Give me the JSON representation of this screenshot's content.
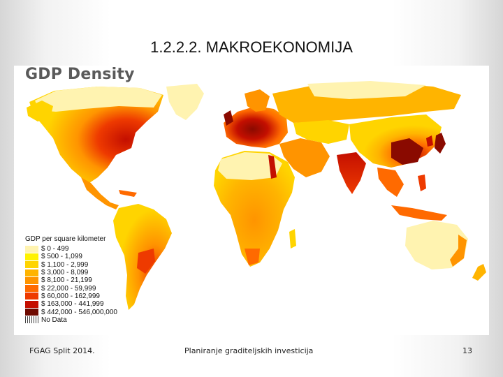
{
  "slide": {
    "title": "1.2.2.2. MAKROEKONOMIJA"
  },
  "map": {
    "heading": "GDP Density",
    "legend": {
      "title": "GDP per square kilometer",
      "items": [
        {
          "label": "$ 0 - 499",
          "color": "#fff3b0"
        },
        {
          "label": "$ 500 - 1,099",
          "color": "#fff200"
        },
        {
          "label": "$ 1,100 - 2,999",
          "color": "#ffd400"
        },
        {
          "label": "$ 3,000 - 8,099",
          "color": "#ffb400"
        },
        {
          "label": "$ 8,100 - 21,199",
          "color": "#ff9400"
        },
        {
          "label": "$ 22,000 - 59,999",
          "color": "#ff6a00"
        },
        {
          "label": "$ 60,000 - 162,999",
          "color": "#ee3a00"
        },
        {
          "label": "$ 163,000 - 441,999",
          "color": "#c40f00"
        },
        {
          "label": "$ 442,000 - 546,000,000",
          "color": "#6e0a00"
        }
      ],
      "no_data": {
        "label": "No Data"
      }
    }
  },
  "footer": {
    "left": "FGAG Split 2014.",
    "center": "Planiranje graditeljskih investicija",
    "page_number": "13"
  }
}
